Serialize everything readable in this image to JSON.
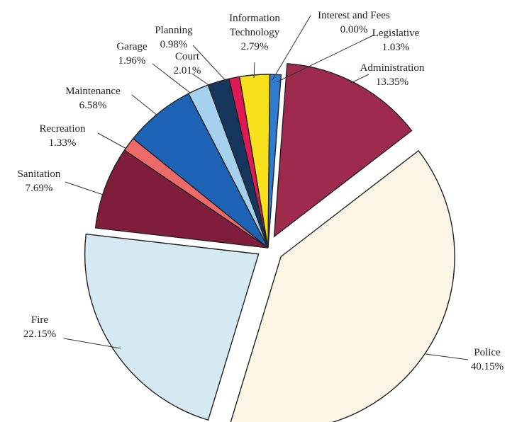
{
  "chart_data": {
    "type": "pie",
    "title": "",
    "slices": [
      {
        "label": "Administration",
        "value": 13.35,
        "value_label": "13.35%",
        "color": "#9e2a4e",
        "label_lines": [
          "Administration",
          "13.35%"
        ]
      },
      {
        "label": "Police",
        "value": 40.15,
        "value_label": "40.15%",
        "color": "#faf5e4",
        "label_lines": [
          "Police",
          "40.15%"
        ]
      },
      {
        "label": "Fire",
        "value": 22.15,
        "value_label": "22.15%",
        "color": "#d4e9f1",
        "label_lines": [
          "Fire",
          "22.15%"
        ]
      },
      {
        "label": "Sanitation",
        "value": 7.69,
        "value_label": "7.69%",
        "color": "#801d3c",
        "label_lines": [
          "Sanitation",
          "7.69%"
        ]
      },
      {
        "label": "Recreation",
        "value": 1.33,
        "value_label": "1.33%",
        "color": "#ee6a6a",
        "label_lines": [
          "Recreation",
          "1.33%"
        ]
      },
      {
        "label": "Maintenance",
        "value": 6.58,
        "value_label": "6.58%",
        "color": "#1d63b5",
        "label_lines": [
          "Maintenance",
          "6.58%"
        ]
      },
      {
        "label": "Garage",
        "value": 1.96,
        "value_label": "1.96%",
        "color": "#a5d1ee",
        "label_lines": [
          "Garage",
          "1.96%"
        ]
      },
      {
        "label": "Court",
        "value": 2.01,
        "value_label": "2.01%",
        "color": "#16365e",
        "label_lines": [
          "Court",
          "2.01%"
        ]
      },
      {
        "label": "Planning",
        "value": 0.98,
        "value_label": "0.98%",
        "color": "#e01856",
        "label_lines": [
          "Planning",
          "0.98%"
        ]
      },
      {
        "label": "Information Technology",
        "value": 2.79,
        "value_label": "2.79%",
        "color": "#f7e01c",
        "label_lines": [
          "Information",
          "Technology",
          "2.79%"
        ]
      },
      {
        "label": "Interest and Fees",
        "value": 0.0,
        "value_label": "0.00%",
        "color": "#ffffff",
        "label_lines": [
          "Interest and Fees",
          "0.00%"
        ]
      },
      {
        "label": "Legislative",
        "value": 1.03,
        "value_label": "1.03%",
        "color": "#2e7ccf",
        "label_lines": [
          "Legislative",
          "1.03%"
        ]
      }
    ]
  }
}
